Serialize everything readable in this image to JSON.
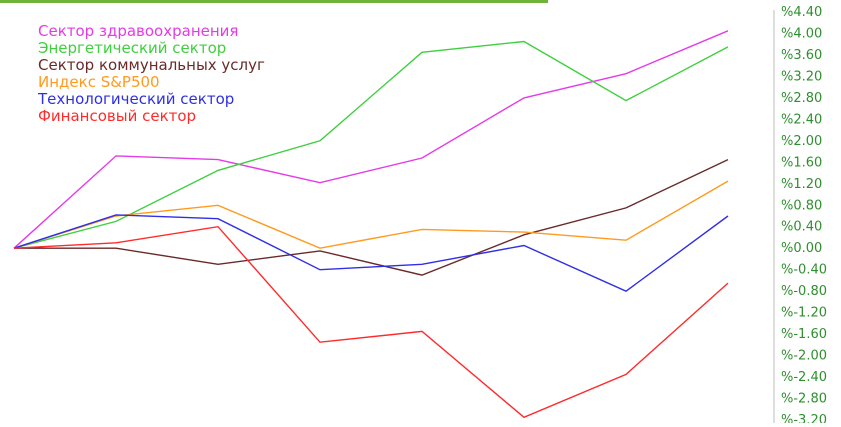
{
  "chart_data": {
    "type": "line",
    "title": "",
    "xlabel": "",
    "ylabel": "",
    "x": [
      0,
      1,
      2,
      3,
      4,
      5,
      6,
      7
    ],
    "ylim": [
      -3.2,
      4.4
    ],
    "yticks": [
      4.4,
      4.0,
      3.6,
      3.2,
      2.8,
      2.4,
      2.0,
      1.6,
      1.2,
      0.8,
      0.4,
      0.0,
      -0.4,
      -0.8,
      -1.2,
      -1.6,
      -2.0,
      -2.4,
      -2.8,
      -3.2
    ],
    "ytick_labels": [
      "%4.40",
      "%4.00",
      "%3.60",
      "%3.20",
      "%2.80",
      "%2.40",
      "%2.00",
      "%1.60",
      "%1.20",
      "%0.80",
      "%0.40",
      "%0.00",
      "%-0.40",
      "%-0.80",
      "%-1.20",
      "%-1.60",
      "%-2.00",
      "%-2.40",
      "%-2.80",
      "%-3.20"
    ],
    "grid": false,
    "legend_position": "top-left",
    "series": [
      {
        "name": "Сектор здравоохранения",
        "color": "#e43be8",
        "values": [
          0.0,
          1.72,
          1.65,
          1.22,
          1.68,
          2.8,
          3.25,
          4.05
        ]
      },
      {
        "name": "Энергетический сектор",
        "color": "#3fcf3f",
        "values": [
          0.0,
          0.5,
          1.45,
          2.0,
          3.65,
          3.85,
          2.75,
          3.75
        ]
      },
      {
        "name": "Сектор коммунальных услуг",
        "color": "#6a2a2a",
        "values": [
          0.0,
          0.0,
          -0.3,
          -0.05,
          -0.5,
          0.25,
          0.75,
          1.65
        ]
      },
      {
        "name": "Индекс S&P500",
        "color": "#ff9a1f",
        "values": [
          0.0,
          0.6,
          0.8,
          0.0,
          0.35,
          0.3,
          0.15,
          1.25
        ]
      },
      {
        "name": "Технологический сектор",
        "color": "#2f2fe6",
        "values": [
          0.0,
          0.62,
          0.55,
          -0.4,
          -0.3,
          0.05,
          -0.8,
          0.6
        ]
      },
      {
        "name": "Финансовый сектор",
        "color": "#ff2b2b",
        "values": [
          0.0,
          0.1,
          0.4,
          -1.75,
          -1.55,
          -3.15,
          -2.35,
          -0.65
        ]
      }
    ]
  }
}
